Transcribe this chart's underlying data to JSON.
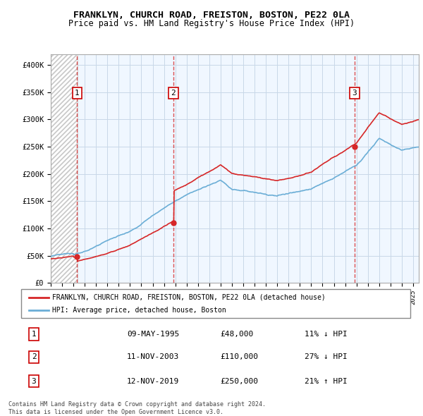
{
  "title1": "FRANKLYN, CHURCH ROAD, FREISTON, BOSTON, PE22 0LA",
  "title2": "Price paid vs. HM Land Registry's House Price Index (HPI)",
  "ylabel_ticks": [
    "£0",
    "£50K",
    "£100K",
    "£150K",
    "£200K",
    "£250K",
    "£300K",
    "£350K",
    "£400K"
  ],
  "ytick_values": [
    0,
    50000,
    100000,
    150000,
    200000,
    250000,
    300000,
    350000,
    400000
  ],
  "ylim": [
    0,
    420000
  ],
  "sale_dates": [
    "1995-05-09",
    "2003-11-11",
    "2019-11-12"
  ],
  "sale_prices": [
    48000,
    110000,
    250000
  ],
  "sale_labels": [
    "1",
    "2",
    "3"
  ],
  "legend_line1": "FRANKLYN, CHURCH ROAD, FREISTON, BOSTON, PE22 0LA (detached house)",
  "legend_line2": "HPI: Average price, detached house, Boston",
  "table_data": [
    [
      "1",
      "09-MAY-1995",
      "£48,000",
      "11% ↓ HPI"
    ],
    [
      "2",
      "11-NOV-2003",
      "£110,000",
      "27% ↓ HPI"
    ],
    [
      "3",
      "12-NOV-2019",
      "£250,000",
      "21% ↑ HPI"
    ]
  ],
  "footnote": "Contains HM Land Registry data © Crown copyright and database right 2024.\nThis data is licensed under the Open Government Licence v3.0.",
  "hpi_color": "#6baed6",
  "price_color": "#d62728",
  "hatch_color": "#aaaaaa",
  "box_color": "#cc0000",
  "grid_color": "#c8d8e8",
  "bg_color": "#eaf3fb",
  "plot_bg": "#f0f7ff"
}
